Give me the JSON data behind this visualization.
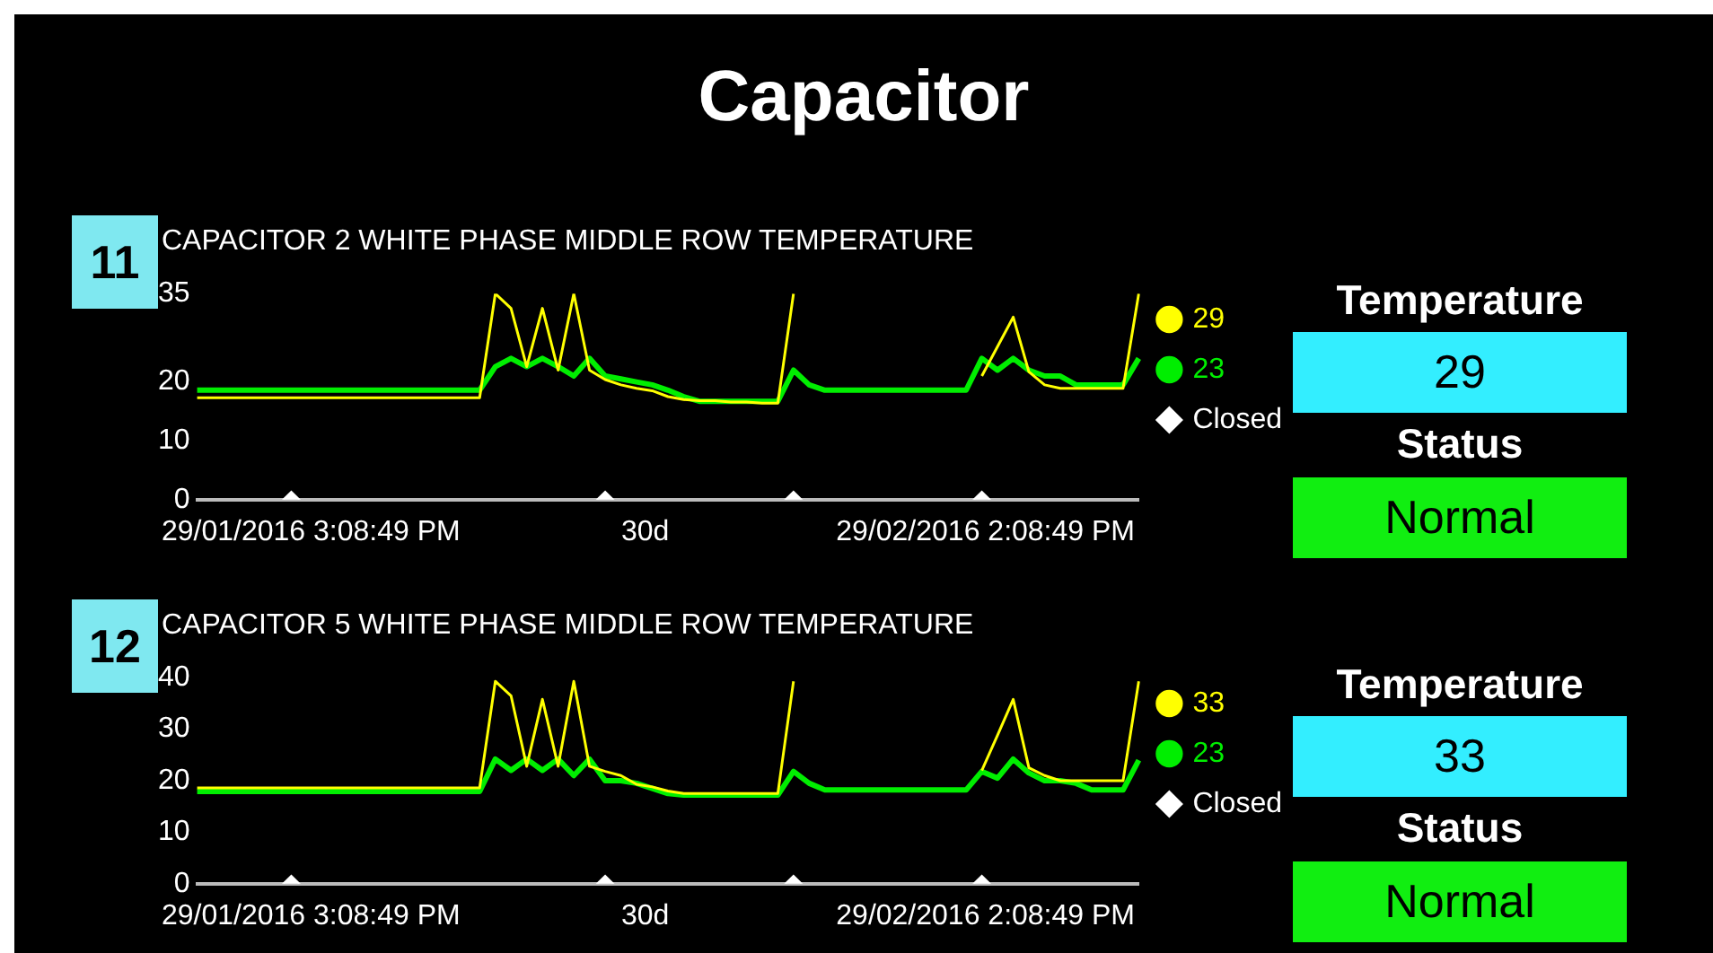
{
  "chart_data": [
    {
      "type": "line",
      "title": "CAPACITOR 2 WHITE PHASE MIDDLE ROW TEMPERATURE",
      "annotations": [
        "11",
        "29/01/2016 3:08:49 PM",
        "30d",
        "29/02/2016 2:08:49 PM",
        "Temperature",
        "29",
        "Status",
        "Normal",
        "Capacitor"
      ],
      "categories": [
        null,
        null,
        null,
        null,
        null,
        null,
        null,
        null,
        null,
        null,
        null,
        null,
        null,
        null,
        null,
        null,
        null,
        null,
        null,
        null,
        null,
        null,
        null,
        null,
        null,
        null,
        null,
        null,
        null,
        null,
        null,
        null,
        null,
        null,
        null,
        null,
        null,
        null,
        null,
        null,
        null,
        null,
        null,
        null,
        null,
        null,
        null,
        null,
        null,
        null,
        null,
        null,
        null,
        null,
        null,
        null,
        null,
        null,
        null,
        null,
        null
      ],
      "series": [
        {
          "name": "29",
          "color": "#ffff00",
          "values": [
            17.3,
            17.3,
            17.3,
            17.3,
            17.3,
            17.3,
            17.3,
            17.3,
            17.3,
            17.3,
            17.3,
            17.3,
            17.3,
            17.3,
            17.3,
            17.3,
            17.3,
            17.3,
            17.3,
            35,
            32.5,
            22.6,
            32.5,
            22,
            35,
            22,
            20.4,
            19.5,
            18.9,
            18.5,
            17.5,
            17,
            16.8,
            16.8,
            16.6,
            16.6,
            16.4,
            16.4,
            35,
            null,
            null,
            null,
            null,
            null,
            null,
            null,
            null,
            null,
            null,
            null,
            21,
            26,
            31,
            21.7,
            19.5,
            18.9,
            18.9,
            18.9,
            18.9,
            18.9,
            35
          ]
        },
        {
          "name": "23",
          "color": "#00ee00",
          "values": [
            18.6,
            18.6,
            18.6,
            18.6,
            18.6,
            18.6,
            18.6,
            18.6,
            18.6,
            18.6,
            18.6,
            18.6,
            18.6,
            18.6,
            18.6,
            18.6,
            18.6,
            18.6,
            18.6,
            22.6,
            24,
            22.6,
            24,
            22.6,
            21,
            24,
            21,
            20.5,
            20,
            19.5,
            18.6,
            17.5,
            16.7,
            16.7,
            16.7,
            16.7,
            16.7,
            16.7,
            22,
            19.5,
            18.6,
            18.6,
            18.6,
            18.6,
            18.6,
            18.6,
            18.6,
            18.6,
            18.6,
            18.6,
            24,
            22,
            24,
            22,
            21,
            21,
            19.5,
            19.5,
            19.5,
            19.5,
            24
          ]
        },
        {
          "name": "Closed",
          "type": "scatter",
          "color": "#ffffff",
          "values": [
            null,
            null,
            null,
            null,
            null,
            null,
            0,
            null,
            null,
            null,
            null,
            null,
            null,
            null,
            null,
            null,
            null,
            null,
            null,
            null,
            null,
            null,
            null,
            null,
            null,
            null,
            0,
            null,
            null,
            null,
            null,
            null,
            null,
            null,
            null,
            null,
            null,
            null,
            0,
            null,
            null,
            null,
            null,
            null,
            null,
            null,
            null,
            null,
            null,
            null,
            0,
            null,
            null,
            null,
            null,
            null,
            null,
            null,
            null,
            null,
            null
          ]
        }
      ],
      "ylim": [
        0,
        35
      ],
      "yticks": [
        0,
        10,
        20,
        35
      ],
      "legend": "right",
      "grid": false
    },
    {
      "type": "line",
      "title": "CAPACITOR 5 WHITE PHASE MIDDLE ROW TEMPERATURE",
      "annotations": [
        "12",
        "29/01/2016 3:08:49 PM",
        "30d",
        "29/02/2016 2:08:49 PM",
        "Temperature",
        "33",
        "Status",
        "Normal"
      ],
      "categories": [
        null,
        null,
        null,
        null,
        null,
        null,
        null,
        null,
        null,
        null,
        null,
        null,
        null,
        null,
        null,
        null,
        null,
        null,
        null,
        null,
        null,
        null,
        null,
        null,
        null,
        null,
        null,
        null,
        null,
        null,
        null,
        null,
        null,
        null,
        null,
        null,
        null,
        null,
        null,
        null,
        null,
        null,
        null,
        null,
        null,
        null,
        null,
        null,
        null,
        null,
        null,
        null,
        null,
        null,
        null,
        null,
        null,
        null,
        null,
        null,
        null
      ],
      "series": [
        {
          "name": "33",
          "color": "#ffff00",
          "values": [
            18.6,
            18.6,
            18.6,
            18.6,
            18.6,
            18.6,
            18.6,
            18.6,
            18.6,
            18.6,
            18.6,
            18.6,
            18.6,
            18.6,
            18.6,
            18.6,
            18.6,
            18.6,
            18.6,
            39.3,
            36.5,
            22.8,
            35.8,
            22.8,
            39.3,
            22.8,
            21.8,
            21,
            19.3,
            18.8,
            18,
            17.5,
            17.5,
            17.5,
            17.5,
            17.5,
            17.5,
            17.5,
            39.3,
            null,
            null,
            null,
            null,
            null,
            null,
            null,
            null,
            null,
            null,
            null,
            22,
            28.8,
            35.8,
            22.5,
            21,
            20,
            20,
            20,
            20,
            20,
            39.3
          ]
        },
        {
          "name": "23",
          "color": "#00ee00",
          "values": [
            17.9,
            17.9,
            17.9,
            17.9,
            17.9,
            17.9,
            17.9,
            17.9,
            17.9,
            17.9,
            17.9,
            17.9,
            17.9,
            17.9,
            17.9,
            17.9,
            17.9,
            17.9,
            17.9,
            24.2,
            22,
            24.2,
            22,
            24.2,
            21,
            24.2,
            20,
            20,
            19.5,
            18.5,
            17.5,
            17.2,
            17.2,
            17.2,
            17.2,
            17.2,
            17.2,
            17.2,
            21.8,
            19.5,
            18.2,
            18.2,
            18.2,
            18.2,
            18.2,
            18.2,
            18.2,
            18.2,
            18.2,
            18.2,
            21.8,
            20.5,
            24.2,
            21.5,
            20,
            20,
            19.5,
            18.2,
            18.2,
            18.2,
            24
          ]
        },
        {
          "name": "Closed",
          "type": "scatter",
          "color": "#ffffff",
          "values": [
            null,
            null,
            null,
            null,
            null,
            null,
            0,
            null,
            null,
            null,
            null,
            null,
            null,
            null,
            null,
            null,
            null,
            null,
            null,
            null,
            null,
            null,
            null,
            null,
            null,
            null,
            0,
            null,
            null,
            null,
            null,
            null,
            null,
            null,
            null,
            null,
            null,
            null,
            0,
            null,
            null,
            null,
            null,
            null,
            null,
            null,
            null,
            null,
            null,
            null,
            0,
            null,
            null,
            null,
            null,
            null,
            null,
            null,
            null,
            null,
            null
          ]
        }
      ],
      "ylim": [
        0,
        40
      ],
      "yticks": [
        0,
        10,
        20,
        30,
        40
      ],
      "legend": "right",
      "grid": false
    }
  ]
}
